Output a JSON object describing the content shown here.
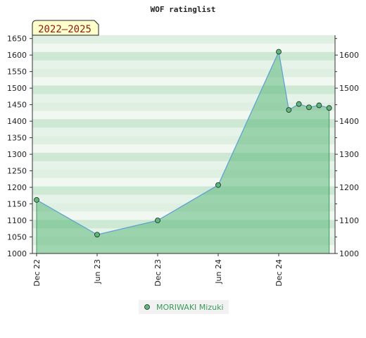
{
  "chart_data": {
    "type": "area",
    "title": "WOF ratinglist",
    "period_badge": "2022–2025",
    "x_tick_labels": [
      "Dec 22",
      "Jun 23",
      "Dec 23",
      "Jun 24",
      "Dec 24"
    ],
    "y_left_ticks": [
      1000,
      1050,
      1100,
      1150,
      1200,
      1250,
      1300,
      1350,
      1400,
      1450,
      1500,
      1550,
      1600,
      1650
    ],
    "y_right_ticks": [
      1000,
      1100,
      1200,
      1300,
      1400,
      1500,
      1600
    ],
    "ylim": [
      1000,
      1660
    ],
    "series": [
      {
        "name": "MORIWAKI Mizuki",
        "points": [
          {
            "x": "2022-12",
            "y": 1162
          },
          {
            "x": "2023-06",
            "y": 1057
          },
          {
            "x": "2023-12",
            "y": 1100
          },
          {
            "x": "2024-06",
            "y": 1207
          },
          {
            "x": "2024-12",
            "y": 1610
          },
          {
            "x": "2025-01",
            "y": 1434
          },
          {
            "x": "2025-02",
            "y": 1452
          },
          {
            "x": "2025-03",
            "y": 1442
          },
          {
            "x": "2025-04",
            "y": 1448
          },
          {
            "x": "2025-05",
            "y": 1440
          }
        ]
      }
    ],
    "colors": {
      "line": "#5a9fd4",
      "fill": "#5cb87a",
      "marker": "#5cb87a",
      "legend_text": "#3a9a5a",
      "badge_bg": "#ffffcc"
    },
    "grid": false,
    "legend_position": "bottom-center"
  }
}
